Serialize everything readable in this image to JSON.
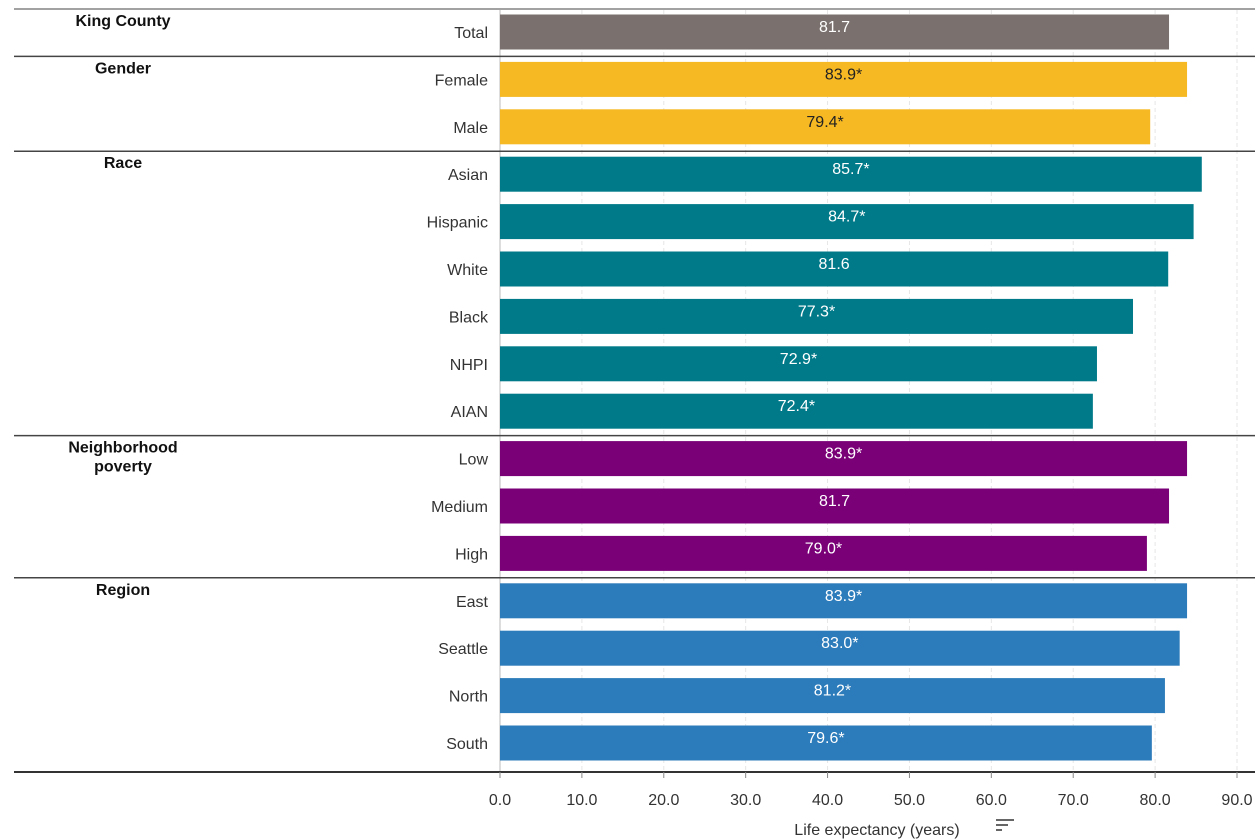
{
  "chart_data": {
    "type": "bar",
    "orientation": "horizontal",
    "xlabel": "Life expectancy (years)",
    "xlim": [
      0,
      90
    ],
    "xticks": [
      "0.0",
      "10.0",
      "20.0",
      "30.0",
      "40.0",
      "50.0",
      "60.0",
      "70.0",
      "80.0",
      "90.0"
    ],
    "grid": "vertical-dashed",
    "groups": [
      {
        "name": "King County",
        "color": "#7a706d",
        "label_color": "#ffffff",
        "items": [
          {
            "category": "Total",
            "value": 81.7,
            "label": "81.7"
          }
        ]
      },
      {
        "name": "Gender",
        "color": "#f6b823",
        "label_color": "#222222",
        "items": [
          {
            "category": "Female",
            "value": 83.9,
            "label": "83.9*"
          },
          {
            "category": "Male",
            "value": 79.4,
            "label": "79.4*"
          }
        ]
      },
      {
        "name": "Race",
        "color": "#007a89",
        "label_color": "#ffffff",
        "items": [
          {
            "category": "Asian",
            "value": 85.7,
            "label": "85.7*"
          },
          {
            "category": "Hispanic",
            "value": 84.7,
            "label": "84.7*"
          },
          {
            "category": "White",
            "value": 81.6,
            "label": "81.6"
          },
          {
            "category": "Black",
            "value": 77.3,
            "label": "77.3*"
          },
          {
            "category": "NHPI",
            "value": 72.9,
            "label": "72.9*"
          },
          {
            "category": "AIAN",
            "value": 72.4,
            "label": "72.4*"
          }
        ]
      },
      {
        "name": "Neighborhood poverty",
        "color": "#7a0078",
        "label_color": "#ffffff",
        "items": [
          {
            "category": "Low",
            "value": 83.9,
            "label": "83.9*"
          },
          {
            "category": "Medium",
            "value": 81.7,
            "label": "81.7"
          },
          {
            "category": "High",
            "value": 79.0,
            "label": "79.0*"
          }
        ]
      },
      {
        "name": "Region",
        "color": "#2c7bba",
        "label_color": "#ffffff",
        "items": [
          {
            "category": "East",
            "value": 83.9,
            "label": "83.9*"
          },
          {
            "category": "Seattle",
            "value": 83.0,
            "label": "83.0*"
          },
          {
            "category": "North",
            "value": 81.2,
            "label": "81.2*"
          },
          {
            "category": "South",
            "value": 79.6,
            "label": "79.6*"
          }
        ]
      }
    ]
  }
}
